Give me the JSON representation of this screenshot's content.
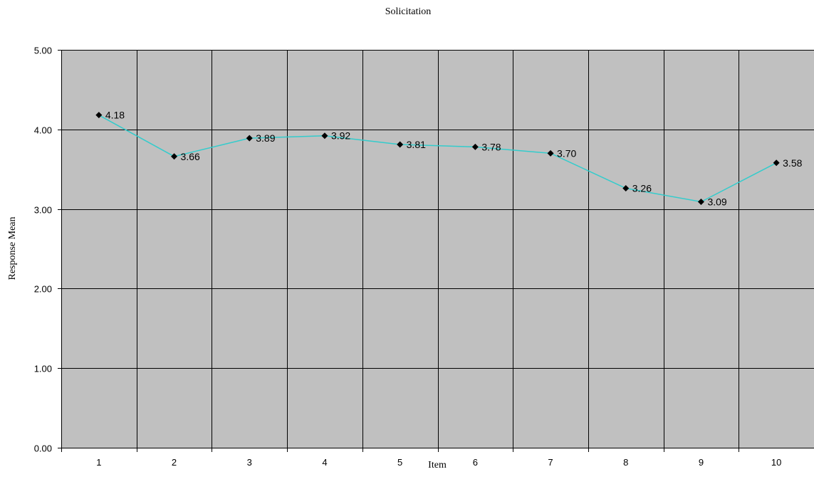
{
  "chart_data": {
    "type": "line",
    "title": "Solicitation",
    "xlabel": "Item",
    "ylabel": "Response Mean",
    "categories": [
      "1",
      "2",
      "3",
      "4",
      "5",
      "6",
      "7",
      "8",
      "9",
      "10"
    ],
    "values": [
      4.18,
      3.66,
      3.89,
      3.92,
      3.81,
      3.78,
      3.7,
      3.26,
      3.09,
      3.58
    ],
    "data_labels": [
      "4.18",
      "3.66",
      "3.89",
      "3.92",
      "3.81",
      "3.78",
      "3.70",
      "3.26",
      "3.09",
      "3.58"
    ],
    "ylim": [
      0,
      5
    ],
    "yticks": [
      0,
      1,
      2,
      3,
      4,
      5
    ],
    "ytick_labels": [
      "0.00",
      "1.00",
      "2.00",
      "3.00",
      "4.00",
      "5.00"
    ],
    "grid": true,
    "legend": "none",
    "colors": {
      "plot_background": "#c0c0c0",
      "line": "#33cccc",
      "marker": "#000000",
      "grid": "#000000"
    }
  }
}
